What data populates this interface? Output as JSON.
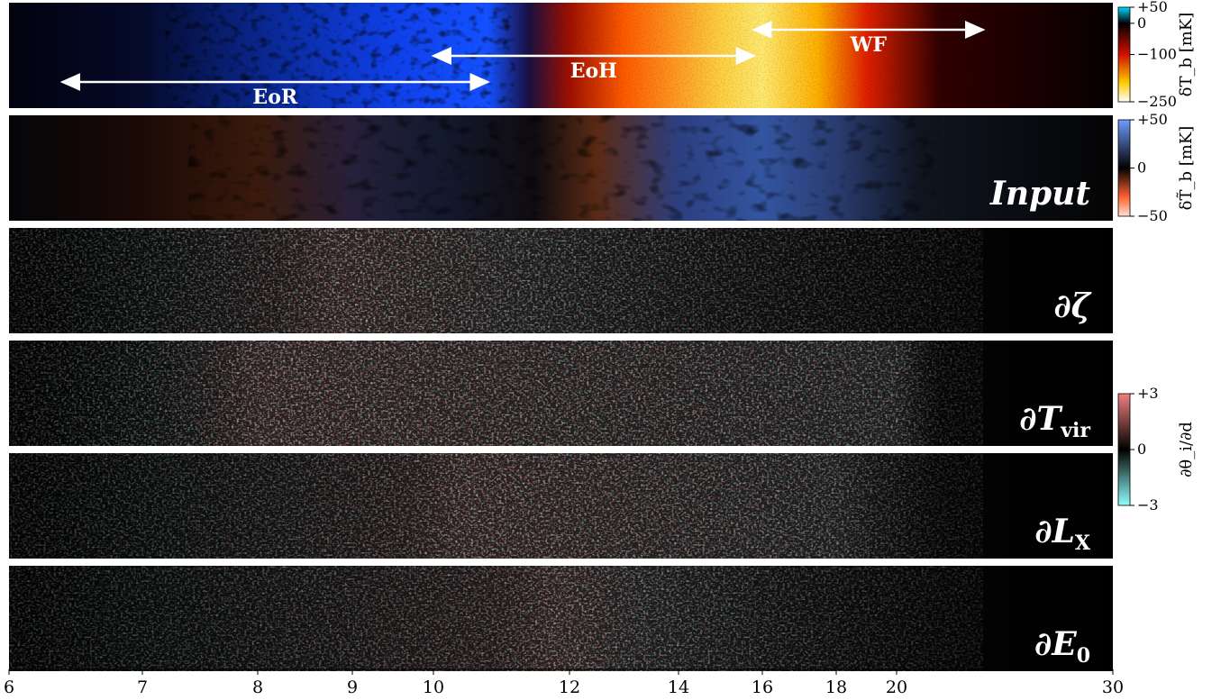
{
  "chart_data": {
    "type": "heatmap",
    "x_axis": {
      "scale": "redshift",
      "range": [
        6,
        30
      ],
      "ticks": [
        "6",
        "7",
        "8",
        "9",
        "10",
        "12",
        "14",
        "16",
        "18",
        "20",
        "30"
      ]
    },
    "phases": [
      {
        "label": "EoR",
        "z_start": 6.4,
        "z_end": 10.8
      },
      {
        "label": "EoH",
        "z_start": 10.0,
        "z_end": 15.8
      },
      {
        "label": "WF",
        "z_start": 15.8,
        "z_end": 24.0
      }
    ],
    "panels": [
      {
        "label": "",
        "kind": "brightness",
        "colorbar": "cbar1"
      },
      {
        "label": "Input",
        "kind": "input",
        "colorbar": "cbar2"
      },
      {
        "label": "∂ζ",
        "kind": "gradient",
        "peak_z": 8.8,
        "peak_z2": 11.4
      },
      {
        "label": "∂T",
        "sub": "vir",
        "kind": "gradient",
        "peak_z": 8.0,
        "peak_z2": 20.0
      },
      {
        "label": "∂L",
        "sub": "X",
        "kind": "gradient",
        "peak_z": 10.4,
        "peak_z2": 18.0
      },
      {
        "label": "∂E",
        "sub": "0",
        "kind": "gradient",
        "peak_z": 11.8,
        "peak_z2": 13.5
      }
    ],
    "colorbars": {
      "cbar1": {
        "title": "δT_b [mK]",
        "ticks": [
          "+50",
          "0",
          "−100",
          "−250"
        ],
        "values": [
          50,
          0,
          -100,
          -250
        ],
        "colors": [
          "#00d8ff",
          "#000000",
          "#d01000",
          "#ffcc00",
          "#ffffff"
        ]
      },
      "cbar2": {
        "title": "δT̃_b [mK]",
        "ticks": [
          "+50",
          "0",
          "−50"
        ],
        "values": [
          50,
          0,
          -50
        ],
        "colors": [
          "#6f9cff",
          "#000000",
          "#ff6030",
          "#ffe0d0"
        ]
      },
      "cbar3": {
        "title": "∂θ_i/∂d",
        "ticks": [
          "+3",
          "0",
          "−3"
        ],
        "values": [
          3,
          0,
          -3
        ],
        "colors": [
          "#f08080",
          "#000000",
          "#90ffff"
        ]
      }
    }
  }
}
